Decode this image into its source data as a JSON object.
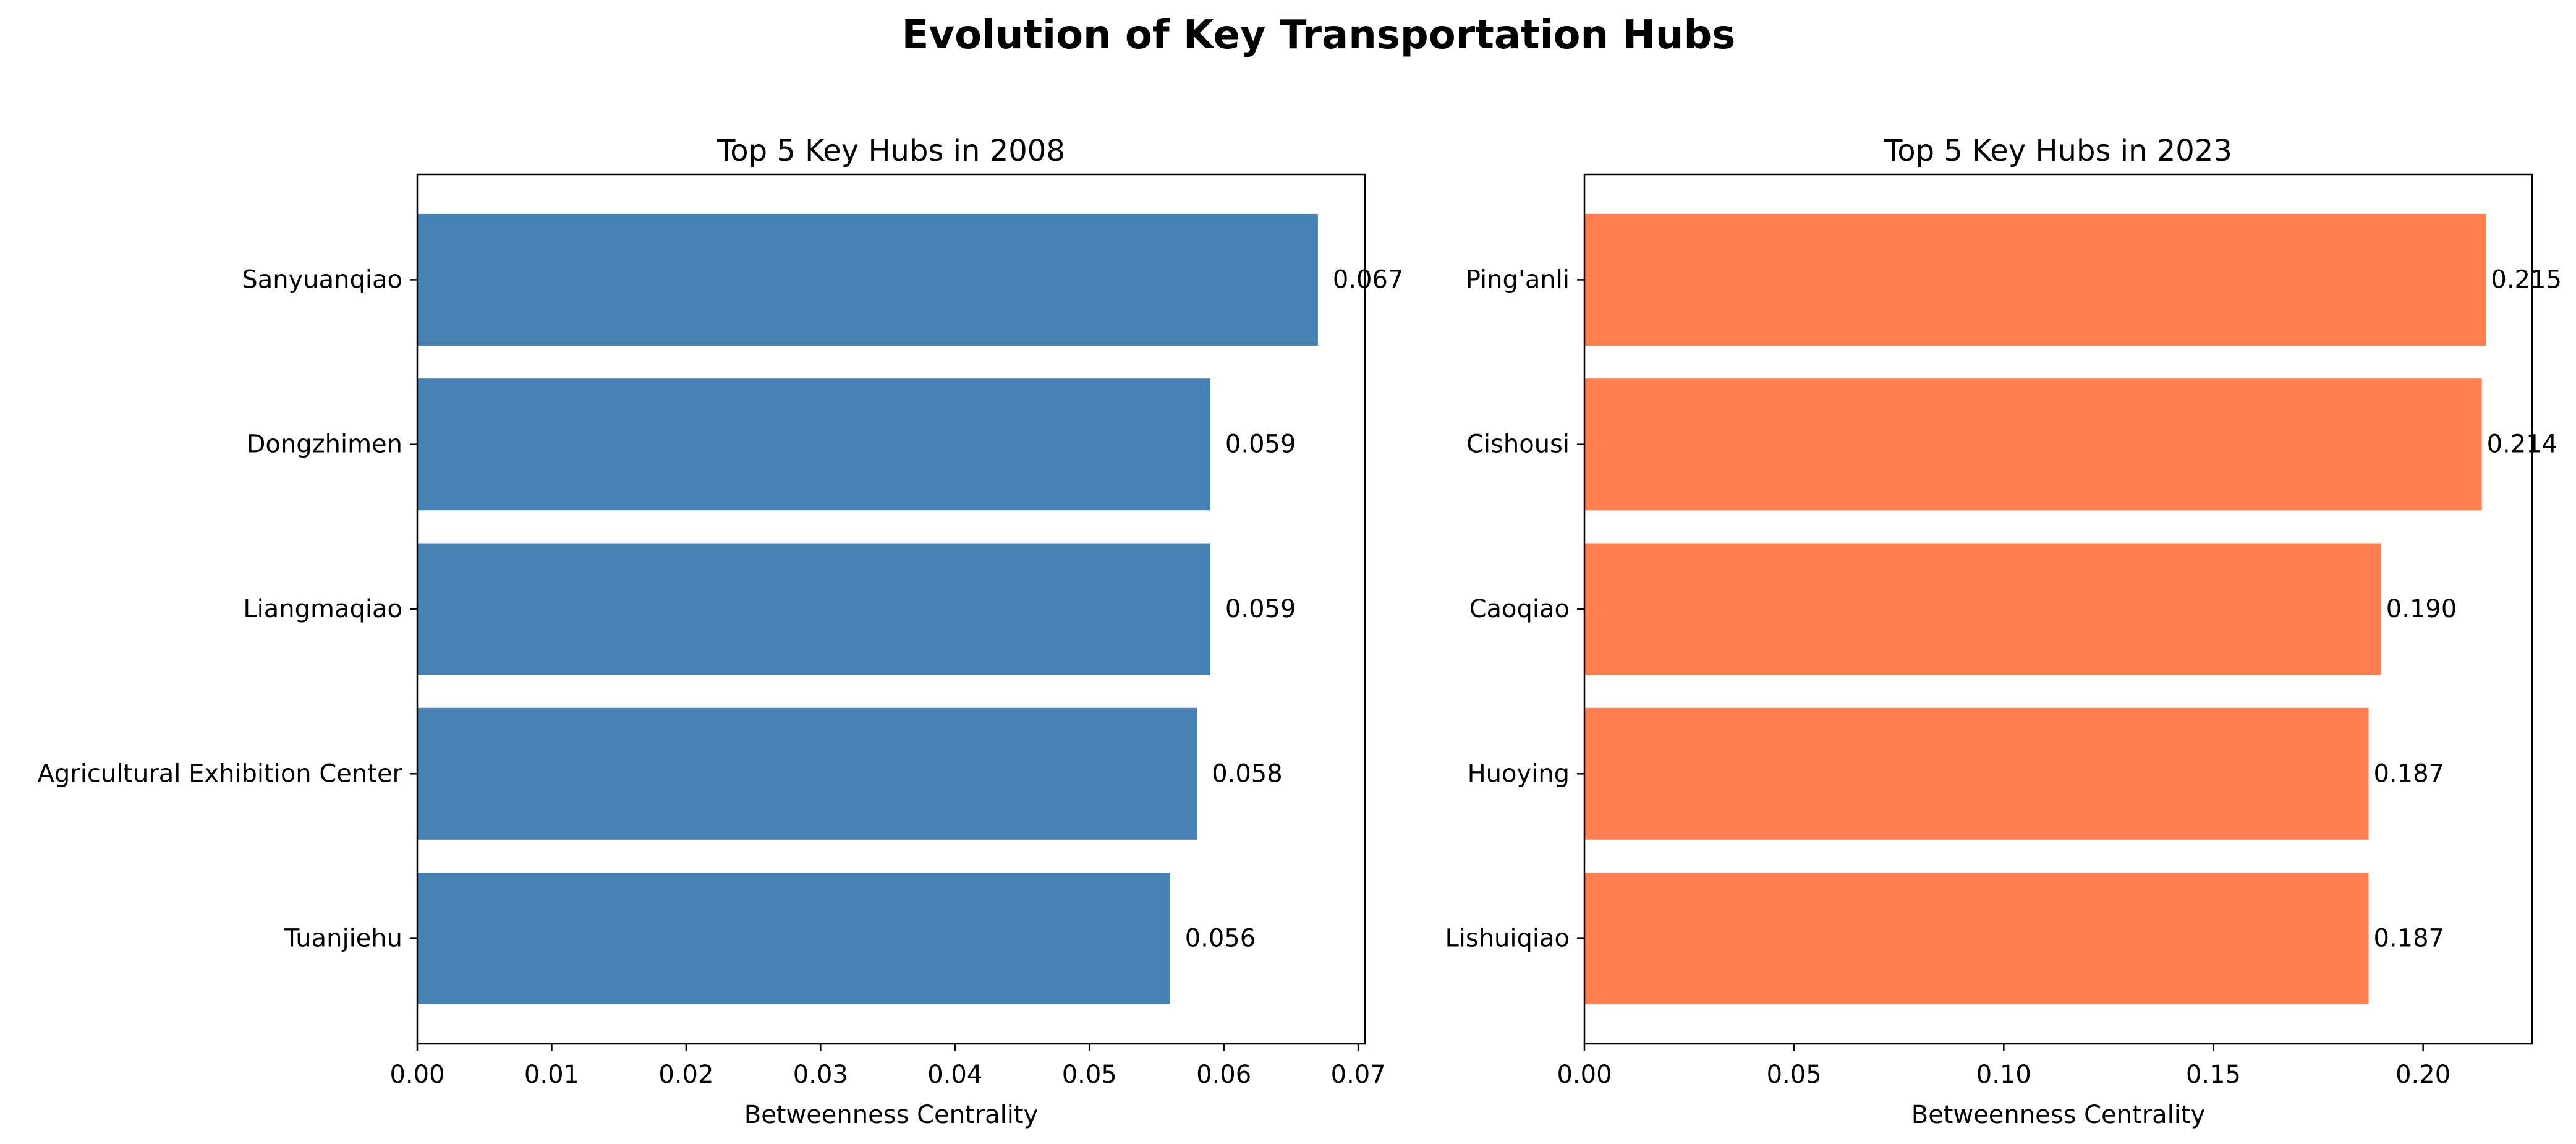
{
  "title": "Evolution of Key Transportation Hubs",
  "chart_data": [
    {
      "type": "bar",
      "orientation": "horizontal",
      "title": "Top 5 Key Hubs in 2008",
      "xlabel": "Betweenness Centrality",
      "ylabel": "",
      "categories": [
        "Sanyuanqiao",
        "Dongzhimen",
        "Liangmaqiao",
        "Agricultural Exhibition Center",
        "Tuanjiehu"
      ],
      "values": [
        0.067,
        0.059,
        0.059,
        0.058,
        0.056
      ],
      "value_labels": [
        "0.067",
        "0.059",
        "0.059",
        "0.058",
        "0.056"
      ],
      "xlim": [
        0,
        0.0705
      ],
      "xticks": [
        0,
        0.01,
        0.02,
        0.03,
        0.04,
        0.05,
        0.06,
        0.07
      ],
      "xtick_labels": [
        "0.00",
        "0.01",
        "0.02",
        "0.03",
        "0.04",
        "0.05",
        "0.06",
        "0.07"
      ],
      "color": "#4682b4",
      "grid": false
    },
    {
      "type": "bar",
      "orientation": "horizontal",
      "title": "Top 5 Key Hubs in 2023",
      "xlabel": "Betweenness Centrality",
      "ylabel": "",
      "categories": [
        "Ping'anli",
        "Cishousi",
        "Caoqiao",
        "Huoying",
        "Lishuiqiao"
      ],
      "values": [
        0.215,
        0.214,
        0.19,
        0.187,
        0.187
      ],
      "value_labels": [
        "0.215",
        "0.214",
        "0.190",
        "0.187",
        "0.187"
      ],
      "xlim": [
        0,
        0.226
      ],
      "xticks": [
        0,
        0.05,
        0.1,
        0.15,
        0.2
      ],
      "xtick_labels": [
        "0.00",
        "0.05",
        "0.10",
        "0.15",
        "0.20"
      ],
      "color": "#ff7f50",
      "grid": false
    }
  ]
}
